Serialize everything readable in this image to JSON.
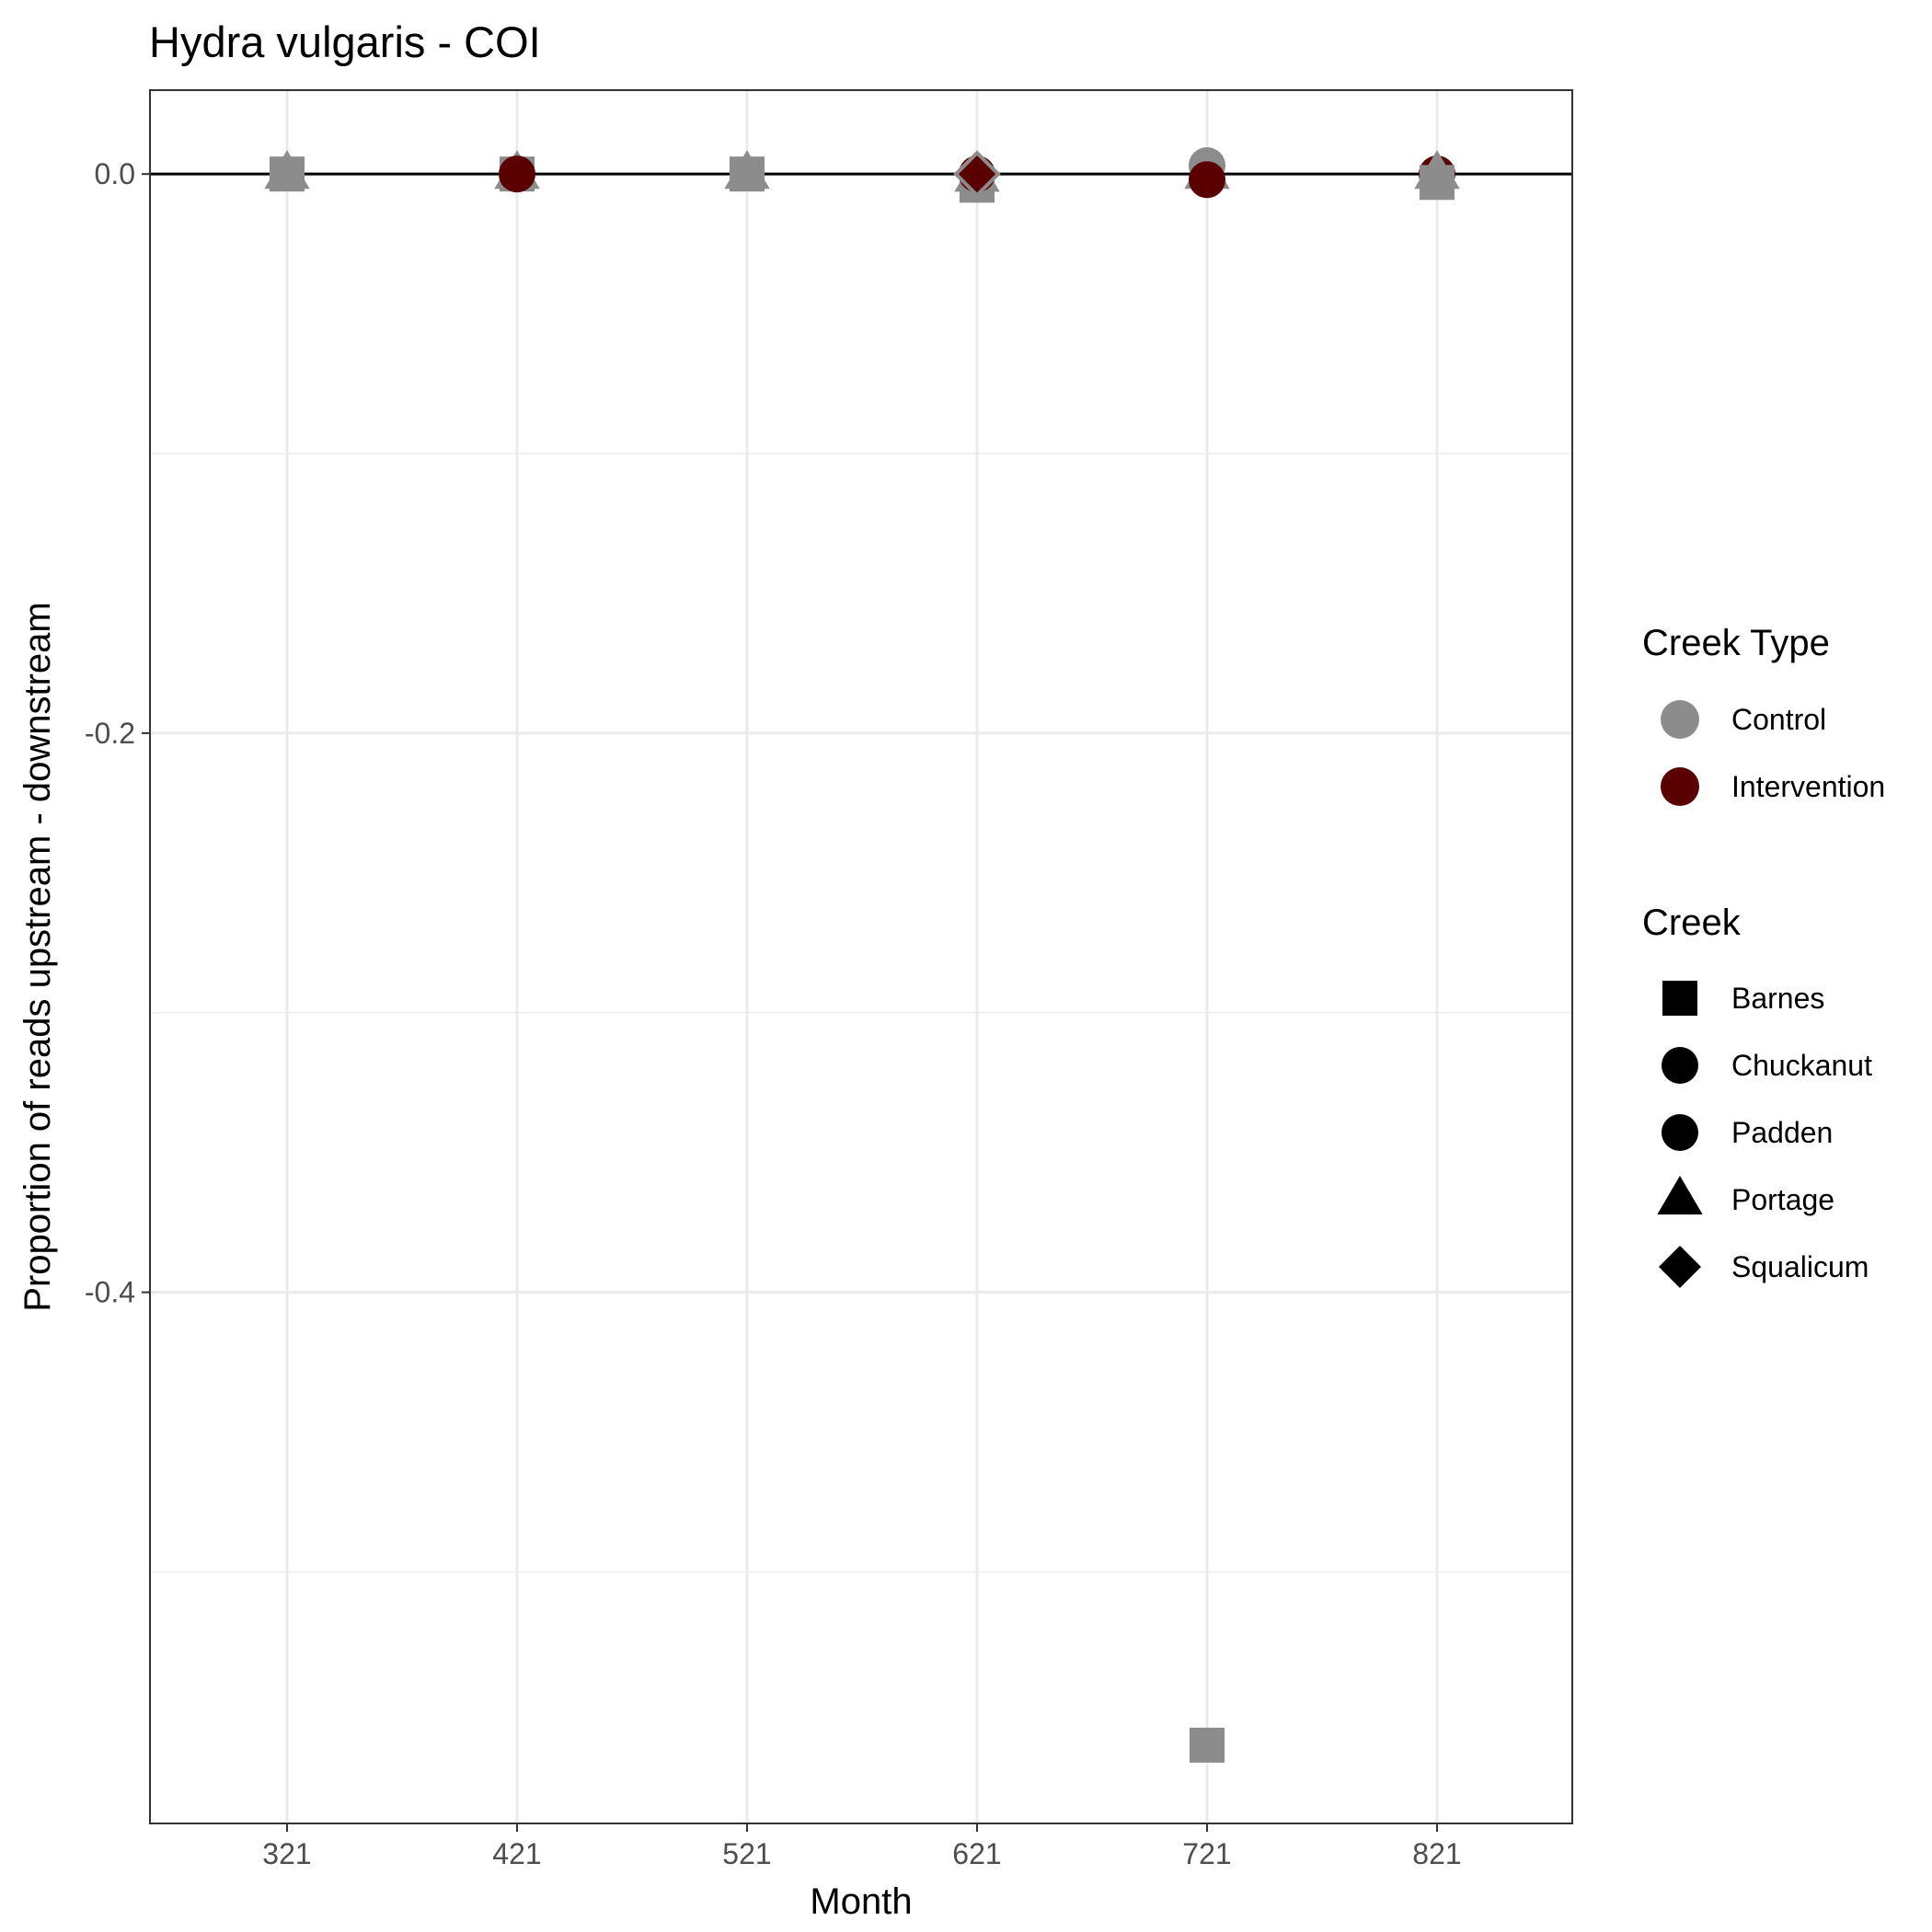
{
  "chart_data": {
    "type": "scatter",
    "title": "Hydra vulgaris - COI",
    "xlabel": "Month",
    "ylabel": "Proportion of reads upstream - downstream",
    "x_categories": [
      "321",
      "421",
      "521",
      "621",
      "721",
      "821"
    ],
    "y_ticks": [
      {
        "value": 0.0,
        "label": "0.0"
      },
      {
        "value": -0.2,
        "label": "-0.2"
      },
      {
        "value": -0.4,
        "label": "-0.4"
      }
    ],
    "ylim": [
      -0.59,
      0.03
    ],
    "grid": true,
    "reference_line_y": 0,
    "legend_position": "right",
    "legends": [
      {
        "title": "Creek Type",
        "entries": [
          {
            "label": "Control",
            "shape": "circle",
            "color": "#8c8c8c"
          },
          {
            "label": "Intervention",
            "shape": "circle",
            "color": "#5a0000"
          }
        ]
      },
      {
        "title": "Creek",
        "entries": [
          {
            "label": "Barnes",
            "shape": "square",
            "color": "#000000"
          },
          {
            "label": "Chuckanut",
            "shape": "circle",
            "color": "#000000"
          },
          {
            "label": "Padden",
            "shape": "circle",
            "color": "#000000"
          },
          {
            "label": "Portage",
            "shape": "triangle",
            "color": "#000000"
          },
          {
            "label": "Squalicum",
            "shape": "diamond",
            "color": "#000000"
          }
        ]
      }
    ],
    "colors": {
      "Control": "#8c8c8c",
      "Intervention": "#5a0000"
    },
    "points": [
      {
        "x": "321",
        "y": 0.0,
        "creek": "Portage",
        "creek_type": "Control"
      },
      {
        "x": "321",
        "y": 0.0,
        "creek": "Barnes",
        "creek_type": "Control"
      },
      {
        "x": "421",
        "y": 0.0,
        "creek": "Portage",
        "creek_type": "Control"
      },
      {
        "x": "421",
        "y": 0.0,
        "creek": "Barnes",
        "creek_type": "Control"
      },
      {
        "x": "421",
        "y": 0.0,
        "creek": "Chuckanut",
        "creek_type": "Intervention"
      },
      {
        "x": "521",
        "y": 0.0,
        "creek": "Portage",
        "creek_type": "Control"
      },
      {
        "x": "521",
        "y": 0.0,
        "creek": "Barnes",
        "creek_type": "Control"
      },
      {
        "x": "621",
        "y": -0.004,
        "creek": "Barnes",
        "creek_type": "Control"
      },
      {
        "x": "621",
        "y": -0.001,
        "creek": "Portage",
        "creek_type": "Control"
      },
      {
        "x": "621",
        "y": 0.0,
        "creek": "Chuckanut",
        "creek_type": "Intervention"
      },
      {
        "x": "621",
        "y": 0.0,
        "creek": "Squalicum",
        "creek_type": "Control"
      },
      {
        "x": "721",
        "y": 0.003,
        "creek": "Padden",
        "creek_type": "Control"
      },
      {
        "x": "721",
        "y": 0.0,
        "creek": "Portage",
        "creek_type": "Control"
      },
      {
        "x": "721",
        "y": -0.002,
        "creek": "Chuckanut",
        "creek_type": "Intervention"
      },
      {
        "x": "721",
        "y": -0.562,
        "creek": "Barnes",
        "creek_type": "Control"
      },
      {
        "x": "821",
        "y": 0.0,
        "creek": "Chuckanut",
        "creek_type": "Intervention"
      },
      {
        "x": "821",
        "y": 0.0,
        "creek": "Portage",
        "creek_type": "Control"
      },
      {
        "x": "821",
        "y": -0.003,
        "creek": "Barnes",
        "creek_type": "Control"
      }
    ]
  }
}
